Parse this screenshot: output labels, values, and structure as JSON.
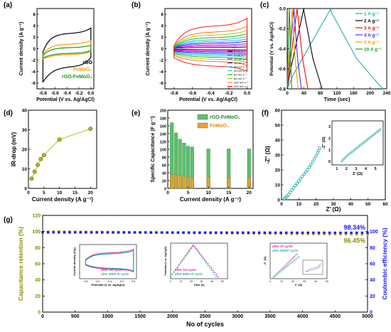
{
  "figure": {
    "panels": {
      "a": {
        "letter": "(a)",
        "xlabel": "Potential (V vs. Ag/AgCl)",
        "ylabel": "Current density (A g⁻¹)",
        "xticks": [
          "-0.8",
          "-0.6",
          "-0.4",
          "-0.2",
          "0.0"
        ],
        "yticks": [
          "6",
          "4",
          "2",
          "0",
          "-2",
          "-4",
          "-6"
        ],
        "legend": [
          {
            "label": "rGO",
            "color": "#000000"
          },
          {
            "label": "FeMoO₄",
            "color": "#ff9900"
          },
          {
            "label": "rGO-FeMoO₄",
            "color": "#1a9a1a"
          }
        ]
      },
      "b": {
        "letter": "(b)",
        "xlabel": "Potential (V vs. Ag/AgCl)",
        "ylabel": "Current density (A g⁻¹)",
        "xticks": [
          "-0.8",
          "-0.6",
          "-0.4",
          "-0.2",
          "0.0"
        ],
        "yticks": [
          "6",
          "4",
          "2",
          "0",
          "-2",
          "-4",
          "-6"
        ],
        "legend": [
          "1 mV s⁻¹",
          "5 mV s⁻¹",
          "10 mV s⁻¹",
          "20 mV s⁻¹",
          "30 mV s⁻¹",
          "40 mV s⁻¹",
          "60 mV s⁻¹",
          "80 mV s⁻¹",
          "100 mV s⁻¹",
          "200 mV s⁻¹"
        ]
      },
      "c": {
        "letter": "(c)",
        "xlabel": "Time (sec)",
        "ylabel": "Potential (V vs. Ag/AgCl)",
        "xticks": [
          "0",
          "40",
          "80",
          "120",
          "160",
          "200",
          "240"
        ],
        "yticks": [
          "0.0",
          "-0.2",
          "-0.4",
          "-0.6",
          "-0.8"
        ],
        "legend": [
          {
            "label": "1 A g⁻¹",
            "color": "#20b2aa"
          },
          {
            "label": "2 A g⁻¹",
            "color": "#000000"
          },
          {
            "label": "3 A g⁻¹",
            "color": "#ff0000"
          },
          {
            "label": "4 A g⁻¹",
            "color": "#3333ff"
          },
          {
            "label": "5 A g⁻¹",
            "color": "#ff9900"
          },
          {
            "label": "10 A g⁻¹",
            "color": "#1a9a1a"
          }
        ]
      },
      "d": {
        "letter": "(d)",
        "xlabel": "Current density (A g⁻¹)",
        "ylabel": "IR-drop (mV)",
        "xticks": [
          "0",
          "5",
          "10",
          "15",
          "20"
        ],
        "yticks": [
          "40",
          "30",
          "20",
          "10",
          "0"
        ]
      },
      "e": {
        "letter": "(e)",
        "xlabel": "Current density (A g⁻¹)",
        "ylabel": "Specific Capacitance (F g⁻¹)",
        "xticks": [
          "0",
          "5",
          "10",
          "15",
          "20"
        ],
        "yticks": [
          "200",
          "180",
          "160",
          "140",
          "120",
          "100",
          "80",
          "60",
          "40",
          "20",
          "0"
        ],
        "legend": [
          {
            "label": "rGO-FeMoO₄",
            "color": "#5dbf6e"
          },
          {
            "label": "FeMoO₄",
            "color": "#f0a030"
          }
        ]
      },
      "f": {
        "letter": "(f)",
        "xlabel": "Z' (Ω)",
        "ylabel": "-Z'' (Ω)",
        "xticks": [
          "0",
          "10",
          "20",
          "30",
          "40",
          "50",
          "60"
        ],
        "yticks": [
          "60",
          "50",
          "40",
          "30",
          "20",
          "10",
          "0"
        ],
        "inset": {
          "xlabel": "Z' (Ω)",
          "ylabel": "-Z'' (Ω)",
          "xticks": [
            "1",
            "2",
            "3",
            "4",
            "5"
          ],
          "yticks": [
            "3",
            "2",
            "1",
            "0"
          ]
        }
      },
      "g": {
        "letter": "(g)",
        "xlabel": "No of cycles",
        "ylabel_left": "Capacitance retention (%)",
        "ylabel_right": "Coulombic efficiency (%)",
        "xticks": [
          "0",
          "500",
          "1000",
          "1500",
          "2000",
          "2500",
          "3000",
          "3500",
          "4000",
          "4500",
          "5000"
        ],
        "yticks_left": [
          "120",
          "100",
          "80",
          "60",
          "40",
          "20",
          "0"
        ],
        "yticks_right": [
          "100",
          "80",
          "60",
          "40",
          "20",
          "0"
        ],
        "annotation_ce": "98.34%",
        "annotation_ret": "96.45%",
        "insets": {
          "cv": {
            "ylabel": "Current density (A/g)",
            "xlabel": "Potential (V vs. Ag/AgCl)",
            "xticks": [
              "-0.8",
              "-0.6",
              "-0.4",
              "-0.2",
              "0.0"
            ],
            "legend": [
              "after 1st cycle",
              "after 5000 th cycle"
            ]
          },
          "gcd": {
            "ylabel": "Potential (V vs. Ag/AgCl)",
            "xlabel": "Time (s)",
            "xticks": [
              "0",
              "10",
              "20",
              "30",
              "40",
              "50"
            ],
            "legend": [
              "after 1st cycle",
              "after 5000 th cycle"
            ]
          },
          "eis": {
            "ylabel": "-Z'' (Ω)",
            "xlabel": "Z' (Ω)",
            "xticks": [
              "0",
              "10",
              "20",
              "30",
              "40",
              "50"
            ],
            "legend": [
              "after 1ˢᵗ cycle",
              "after 5000ᵗʰ cycle"
            ]
          }
        }
      }
    },
    "colors": {
      "teal": "#20b2aa",
      "olive": "#8b8b00",
      "olive_light": "#c8c850",
      "blue": "#1515ff",
      "magenta": "#e0209a",
      "rgo": "#000000",
      "femoo": "#ff9900",
      "composite": "#1a9a1a"
    }
  },
  "chart_data": [
    {
      "panel": "a",
      "type": "line",
      "xlabel": "Potential (V vs. Ag/AgCl)",
      "ylabel": "Current density (A g⁻¹)",
      "xlim": [
        -0.9,
        0.05
      ],
      "ylim": [
        -7,
        7
      ],
      "series": [
        {
          "name": "rGO",
          "upper": [
            [
              -0.8,
              -0.6
            ],
            [
              -0.6,
              2.0
            ],
            [
              -0.4,
              2.3
            ],
            [
              -0.2,
              2.7
            ],
            [
              0.0,
              3.6
            ]
          ],
          "lower": [
            [
              -0.8,
              -5.8
            ],
            [
              -0.6,
              -3.2
            ],
            [
              -0.4,
              -2.6
            ],
            [
              -0.2,
              -2.1
            ],
            [
              0.0,
              -1.5
            ]
          ]
        },
        {
          "name": "FeMoO₄",
          "upper": [
            [
              -0.8,
              -1.0
            ],
            [
              -0.6,
              0.2
            ],
            [
              -0.4,
              0.5
            ],
            [
              -0.2,
              0.8
            ],
            [
              0.0,
              1.4
            ]
          ],
          "lower": [
            [
              -0.8,
              -1.8
            ],
            [
              -0.6,
              -1.2
            ],
            [
              -0.4,
              -1.0
            ],
            [
              -0.2,
              -0.8
            ],
            [
              0.0,
              -0.5
            ]
          ]
        },
        {
          "name": "rGO-FeMoO₄",
          "upper": [
            [
              -0.8,
              -1.2
            ],
            [
              -0.6,
              -0.2
            ],
            [
              -0.4,
              0.0
            ],
            [
              -0.2,
              0.2
            ],
            [
              0.0,
              0.6
            ]
          ],
          "lower": [
            [
              -0.8,
              -1.6
            ],
            [
              -0.6,
              -1.0
            ],
            [
              -0.4,
              -0.8
            ],
            [
              -0.2,
              -0.6
            ],
            [
              0.0,
              -0.3
            ]
          ]
        }
      ]
    },
    {
      "panel": "b",
      "type": "line",
      "xlabel": "Potential (V vs. Ag/AgCl)",
      "ylabel": "Current density (A g⁻¹)",
      "xlim": [
        -0.9,
        0.05
      ],
      "ylim": [
        -7,
        7
      ],
      "series": [
        {
          "name": "1 mV s⁻¹",
          "amplitude": 0.3
        },
        {
          "name": "5 mV s⁻¹",
          "amplitude": 0.6
        },
        {
          "name": "10 mV s⁻¹",
          "amplitude": 0.9
        },
        {
          "name": "20 mV s⁻¹",
          "amplitude": 1.3
        },
        {
          "name": "30 mV s⁻¹",
          "amplitude": 1.7
        },
        {
          "name": "40 mV s⁻¹",
          "amplitude": 2.1
        },
        {
          "name": "60 mV s⁻¹",
          "amplitude": 2.6
        },
        {
          "name": "80 mV s⁻¹",
          "amplitude": 3.2
        },
        {
          "name": "100 mV s⁻¹",
          "amplitude": 3.9
        },
        {
          "name": "200 mV s⁻¹",
          "amplitude": 5.3
        }
      ]
    },
    {
      "panel": "c",
      "type": "line",
      "xlabel": "Time (sec)",
      "ylabel": "Potential (V vs. Ag/AgCl)",
      "xlim": [
        0,
        240
      ],
      "ylim": [
        -0.8,
        0.0
      ],
      "series": [
        {
          "name": "1 A g⁻¹",
          "t_charge": 105,
          "t_end": 230
        },
        {
          "name": "2 A g⁻¹",
          "t_charge": 40,
          "t_end": 84
        },
        {
          "name": "3 A g⁻¹",
          "t_charge": 24,
          "t_end": 50
        },
        {
          "name": "4 A g⁻¹",
          "t_charge": 16,
          "t_end": 34
        },
        {
          "name": "5 A g⁻¹",
          "t_charge": 12,
          "t_end": 26
        },
        {
          "name": "10 A g⁻¹",
          "t_charge": 5,
          "t_end": 11
        }
      ]
    },
    {
      "panel": "d",
      "type": "line",
      "xlabel": "Current density (A g⁻¹)",
      "ylabel": "IR-drop (mV)",
      "xlim": [
        0,
        22
      ],
      "ylim": [
        0,
        40
      ],
      "x": [
        1,
        2,
        3,
        4,
        5,
        10,
        20
      ],
      "y": [
        5,
        8.5,
        12,
        15,
        17,
        25,
        30.5
      ]
    },
    {
      "panel": "e",
      "type": "bar",
      "xlabel": "Current density (A g⁻¹)",
      "ylabel": "Specific Capacitance (F g⁻¹)",
      "xlim": [
        0,
        21
      ],
      "ylim": [
        0,
        200
      ],
      "categories": [
        1,
        2,
        3,
        4,
        5,
        6,
        10,
        15,
        20
      ],
      "series": [
        {
          "name": "rGO-FeMoO₄",
          "values": [
            168,
            142,
            126,
            116,
            108,
            106,
            101,
            101,
            101
          ]
        },
        {
          "name": "FeMoO₄",
          "values": [
            35,
            35,
            33,
            31,
            29,
            27,
            30,
            27,
            27
          ]
        }
      ]
    },
    {
      "panel": "f",
      "type": "scatter",
      "xlabel": "Z' (Ω)",
      "ylabel": "-Z'' (Ω)",
      "xlim": [
        0,
        60
      ],
      "ylim": [
        0,
        60
      ],
      "x": [
        1.5,
        2,
        2.5,
        3,
        3.5,
        4,
        5,
        6,
        7,
        8,
        9,
        10,
        11,
        12,
        13,
        14,
        15,
        16,
        17,
        18,
        19,
        20,
        21,
        21.5,
        22
      ],
      "y": [
        0.5,
        1,
        1.6,
        2.2,
        2.8,
        3.5,
        5,
        6.5,
        8,
        9.5,
        11,
        12.5,
        14,
        15.5,
        17,
        18.5,
        20,
        21.8,
        23.5,
        25.5,
        27.5,
        29.5,
        31.5,
        33,
        34.5
      ]
    },
    {
      "panel": "g",
      "type": "scatter",
      "xlabel": "No of cycles",
      "ylabel": "Capacitance retention (%)",
      "y2label": "Coulombic efficiency (%)",
      "xlim": [
        0,
        5000
      ],
      "ylim": [
        0,
        120
      ],
      "y2lim": [
        0,
        120
      ],
      "series": [
        {
          "name": "Capacitance retention",
          "x": [
            0,
            5000
          ],
          "y": [
            100,
            96.45
          ]
        },
        {
          "name": "Coulombic efficiency",
          "x": [
            0,
            5000
          ],
          "y": [
            99,
            98.34
          ]
        }
      ]
    }
  ]
}
